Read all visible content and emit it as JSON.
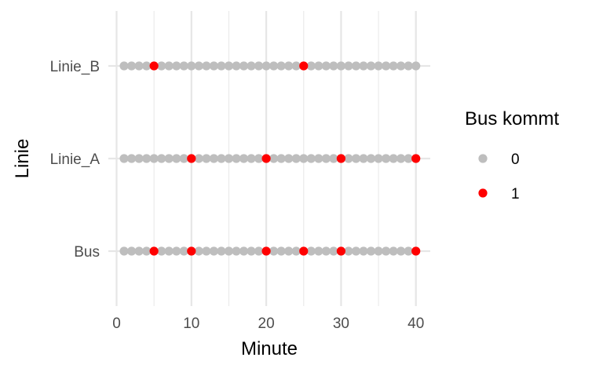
{
  "chart_data": {
    "type": "scatter",
    "xlabel": "Minute",
    "ylabel": "Linie",
    "xlim": [
      0,
      41
    ],
    "x_ticks": [
      0,
      10,
      20,
      30,
      40
    ],
    "categories": [
      "Bus",
      "Linie_A",
      "Linie_B"
    ],
    "x": [
      1,
      2,
      3,
      4,
      5,
      6,
      7,
      8,
      9,
      10,
      11,
      12,
      13,
      14,
      15,
      16,
      17,
      18,
      19,
      20,
      21,
      22,
      23,
      24,
      25,
      26,
      27,
      28,
      29,
      30,
      31,
      32,
      33,
      34,
      35,
      36,
      37,
      38,
      39,
      40
    ],
    "series": [
      {
        "category": "Bus",
        "arrivals": [
          5,
          10,
          20,
          25,
          30,
          40
        ]
      },
      {
        "category": "Linie_A",
        "arrivals": [
          10,
          20,
          30,
          40
        ]
      },
      {
        "category": "Linie_B",
        "arrivals": [
          5,
          25
        ]
      }
    ],
    "legend": {
      "title": "Bus kommt",
      "position": "right",
      "entries": [
        {
          "label": "0",
          "color": "#bebebe"
        },
        {
          "label": "1",
          "color": "#ff0000"
        }
      ]
    },
    "grid": true
  }
}
